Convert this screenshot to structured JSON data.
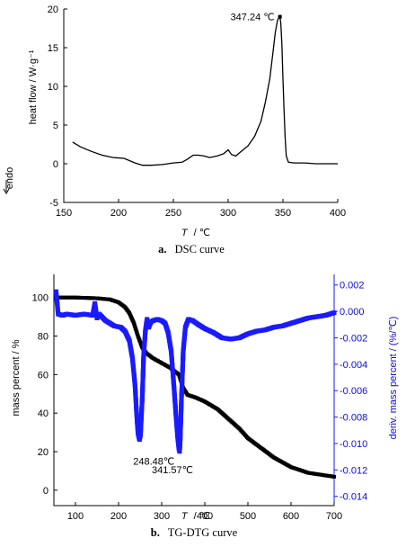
{
  "chart_data": [
    {
      "type": "line",
      "caption_letter": "a.",
      "caption": "DSC curve",
      "xlabel_symbol": "T",
      "xlabel_unit": "/ ℃",
      "ylabel": "heat flow / W·g⁻¹",
      "side_label": "endo",
      "xlim": [
        150,
        400
      ],
      "ylim": [
        -5,
        20
      ],
      "xticks": [
        150,
        200,
        250,
        300,
        350,
        400
      ],
      "yticks": [
        -5,
        0,
        5,
        10,
        15,
        20
      ],
      "grid": false,
      "annotations": [
        {
          "text": "347.24 ℃",
          "x": 347.24,
          "y": 19.0
        }
      ],
      "series": [
        {
          "color": "#000000",
          "x": [
            158,
            165,
            175,
            185,
            195,
            205,
            215,
            222,
            230,
            240,
            250,
            258,
            263,
            268,
            273,
            278,
            283,
            290,
            296,
            300,
            303,
            307,
            312,
            318,
            324,
            330,
            334,
            338,
            341,
            343,
            345,
            346.5,
            347.24,
            348,
            349,
            350,
            351,
            352,
            353,
            355,
            360,
            370,
            380,
            390,
            400
          ],
          "y": [
            2.8,
            2.2,
            1.6,
            1.1,
            0.8,
            0.7,
            0.1,
            -0.2,
            -0.2,
            -0.1,
            0.1,
            0.2,
            0.6,
            1.1,
            1.1,
            1.0,
            0.8,
            1.0,
            1.3,
            1.8,
            1.2,
            1.0,
            1.6,
            2.3,
            3.5,
            5.5,
            8.0,
            11.0,
            14.5,
            17.0,
            18.5,
            19.0,
            19.0,
            18.2,
            15.5,
            11.0,
            7.0,
            3.5,
            1.0,
            0.2,
            0.1,
            0.1,
            0.0,
            0.0,
            0.0
          ]
        }
      ]
    },
    {
      "type": "line",
      "caption_letter": "b.",
      "caption": "TG-DTG curve",
      "xlabel_symbol": "T",
      "xlabel_unit": "/ ℃",
      "ylabel": "mass percent / %",
      "y2label": "deriv. mass percent / (%/℃)",
      "xlim": [
        50,
        700
      ],
      "ylim": [
        -8,
        112
      ],
      "y2lim": [
        -0.0147,
        0.0028
      ],
      "xticks": [
        100,
        200,
        300,
        400,
        500,
        600,
        700
      ],
      "yticks": [
        0,
        20,
        40,
        60,
        80,
        100
      ],
      "y2ticks": [
        0.002,
        0.0,
        -0.002,
        -0.004,
        -0.006,
        -0.008,
        -0.01,
        -0.012,
        -0.014
      ],
      "y2ticklabels": [
        "0.002",
        "0.000",
        "-0.002",
        "-0.004",
        "-0.006",
        "-0.008",
        "-0.010",
        "-0.012",
        "-0.014"
      ],
      "grid": false,
      "annotations": [
        {
          "text": "248.48℃",
          "x": 248.48,
          "y2": -0.0097
        },
        {
          "text": "341.57℃",
          "x": 341.57,
          "y2": -0.0106
        }
      ],
      "series": [
        {
          "name": "TG",
          "axis": "left",
          "color": "#000000",
          "x": [
            55,
            100,
            150,
            180,
            200,
            215,
            225,
            235,
            245,
            255,
            265,
            280,
            300,
            320,
            340,
            350,
            360,
            380,
            400,
            430,
            450,
            480,
            500,
            530,
            560,
            600,
            640,
            670,
            700
          ],
          "y": [
            100,
            100,
            99.6,
            99.0,
            97.5,
            95.0,
            92.0,
            87.0,
            80.0,
            74.0,
            71.0,
            68.5,
            66.0,
            63.5,
            60.0,
            53.0,
            49.5,
            48.0,
            46.0,
            42.0,
            38.0,
            32.0,
            27.0,
            22.0,
            17.0,
            12.0,
            9.0,
            8.0,
            7.0
          ],
          "point_size": 4
        },
        {
          "name": "DTG",
          "axis": "right",
          "color": "#1a1aff",
          "x": [
            55,
            60,
            70,
            80,
            100,
            120,
            140,
            145,
            150,
            155,
            170,
            190,
            205,
            215,
            225,
            232,
            238,
            242,
            245,
            248.48,
            251,
            255,
            258,
            262,
            266,
            270,
            275,
            280,
            290,
            300,
            308,
            315,
            322,
            328,
            333,
            337,
            340,
            341.57,
            343,
            346,
            350,
            355,
            362,
            372,
            385,
            400,
            420,
            440,
            460,
            480,
            500,
            520,
            540,
            560,
            580,
            600,
            620,
            640,
            660,
            680,
            700
          ],
          "y": [
            0.0015,
            -0.0002,
            -0.0003,
            -0.0002,
            -0.0003,
            -0.0002,
            -0.0003,
            0.0006,
            -0.0005,
            -0.0002,
            -0.0007,
            -0.0011,
            -0.0012,
            -0.0015,
            -0.0022,
            -0.0035,
            -0.0055,
            -0.0078,
            -0.0092,
            -0.0097,
            -0.0093,
            -0.0065,
            -0.0035,
            -0.0015,
            -0.0006,
            -0.0012,
            -0.0008,
            -0.0007,
            -0.0006,
            -0.0007,
            -0.0009,
            -0.0016,
            -0.003,
            -0.0055,
            -0.0078,
            -0.0095,
            -0.0104,
            -0.0106,
            -0.0097,
            -0.0065,
            -0.003,
            -0.0012,
            -0.0006,
            -0.0007,
            -0.001,
            -0.0013,
            -0.0016,
            -0.002,
            -0.0021,
            -0.002,
            -0.0017,
            -0.0015,
            -0.0014,
            -0.0012,
            -0.0011,
            -0.0009,
            -0.0007,
            -0.0005,
            -0.0004,
            -0.0003,
            -0.0001
          ],
          "point_size": 5
        }
      ]
    }
  ]
}
